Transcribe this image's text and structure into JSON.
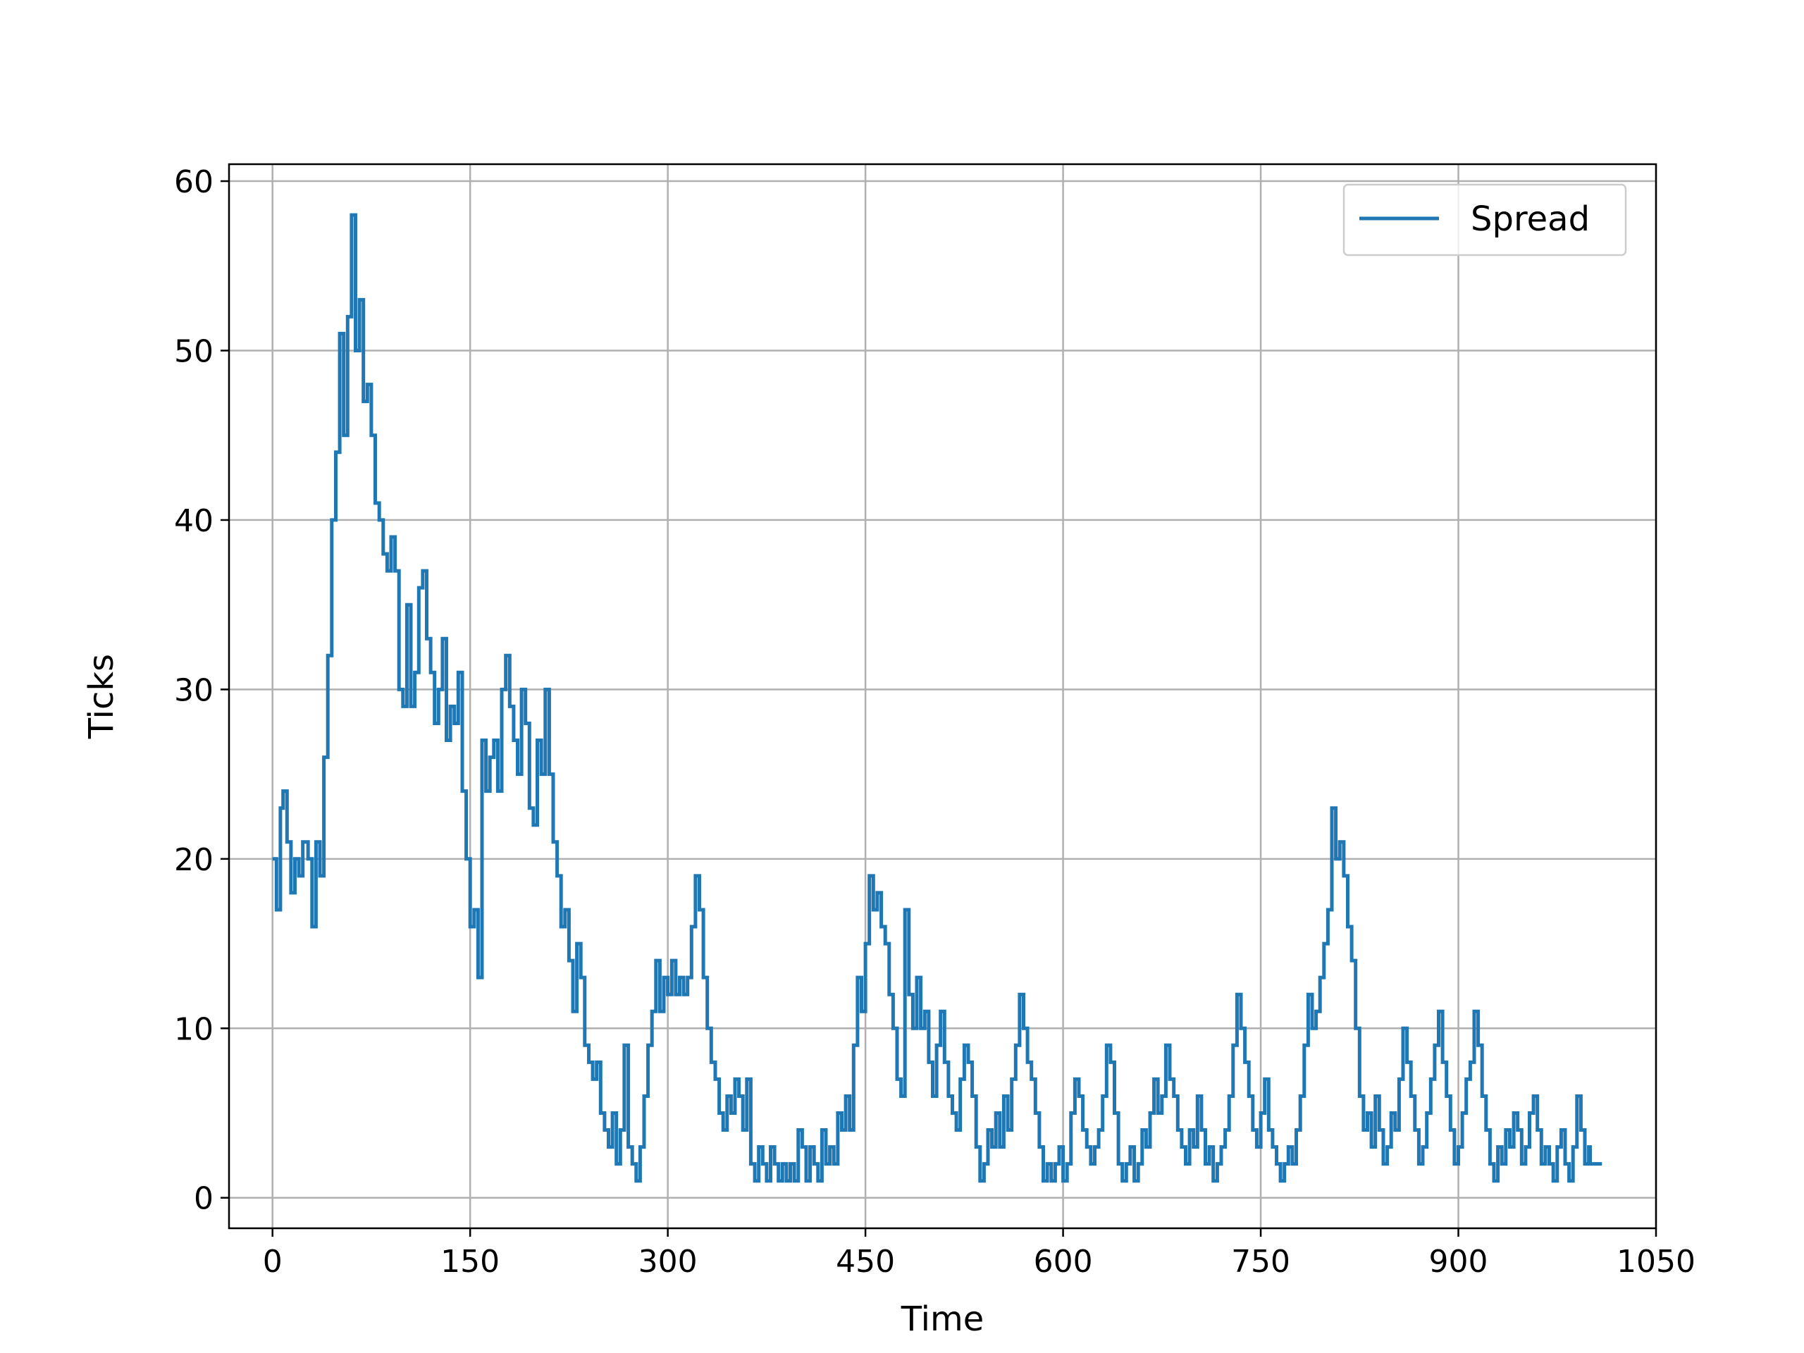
{
  "chart_data": {
    "type": "line",
    "title": "",
    "xlabel": "Time",
    "ylabel": "Ticks",
    "xlim": [
      -33,
      1050
    ],
    "ylim": [
      -1.8,
      61
    ],
    "xticks": [
      0,
      150,
      300,
      450,
      600,
      750,
      900,
      1050
    ],
    "yticks": [
      0,
      10,
      20,
      30,
      40,
      50,
      60
    ],
    "grid": true,
    "legend": {
      "position": "top-right",
      "entries": [
        "Spread"
      ]
    },
    "step": true,
    "series": [
      {
        "name": "Spread",
        "color": "#1f77b4",
        "points": [
          [
            0,
            20
          ],
          [
            3,
            17
          ],
          [
            6,
            23
          ],
          [
            8,
            24
          ],
          [
            11,
            21
          ],
          [
            14,
            18
          ],
          [
            17,
            20
          ],
          [
            20,
            19
          ],
          [
            23,
            21
          ],
          [
            27,
            20
          ],
          [
            30,
            16
          ],
          [
            33,
            21
          ],
          [
            36,
            19
          ],
          [
            39,
            26
          ],
          [
            42,
            32
          ],
          [
            45,
            40
          ],
          [
            48,
            44
          ],
          [
            51,
            51
          ],
          [
            54,
            45
          ],
          [
            57,
            52
          ],
          [
            60,
            58
          ],
          [
            63,
            50
          ],
          [
            66,
            53
          ],
          [
            69,
            47
          ],
          [
            72,
            48
          ],
          [
            75,
            45
          ],
          [
            78,
            41
          ],
          [
            81,
            40
          ],
          [
            84,
            38
          ],
          [
            87,
            37
          ],
          [
            90,
            39
          ],
          [
            93,
            37
          ],
          [
            96,
            30
          ],
          [
            99,
            29
          ],
          [
            102,
            35
          ],
          [
            105,
            29
          ],
          [
            108,
            31
          ],
          [
            111,
            36
          ],
          [
            114,
            37
          ],
          [
            117,
            33
          ],
          [
            120,
            31
          ],
          [
            123,
            28
          ],
          [
            126,
            30
          ],
          [
            129,
            33
          ],
          [
            132,
            27
          ],
          [
            135,
            29
          ],
          [
            138,
            28
          ],
          [
            141,
            31
          ],
          [
            144,
            24
          ],
          [
            147,
            20
          ],
          [
            150,
            16
          ],
          [
            153,
            17
          ],
          [
            156,
            13
          ],
          [
            159,
            27
          ],
          [
            162,
            24
          ],
          [
            165,
            26
          ],
          [
            168,
            27
          ],
          [
            171,
            24
          ],
          [
            174,
            30
          ],
          [
            177,
            32
          ],
          [
            180,
            29
          ],
          [
            183,
            27
          ],
          [
            186,
            25
          ],
          [
            189,
            30
          ],
          [
            192,
            28
          ],
          [
            195,
            23
          ],
          [
            198,
            22
          ],
          [
            201,
            27
          ],
          [
            204,
            25
          ],
          [
            207,
            30
          ],
          [
            210,
            25
          ],
          [
            213,
            21
          ],
          [
            216,
            19
          ],
          [
            219,
            16
          ],
          [
            222,
            17
          ],
          [
            225,
            14
          ],
          [
            228,
            11
          ],
          [
            231,
            15
          ],
          [
            234,
            13
          ],
          [
            237,
            9
          ],
          [
            240,
            8
          ],
          [
            243,
            7
          ],
          [
            246,
            8
          ],
          [
            249,
            5
          ],
          [
            252,
            4
          ],
          [
            255,
            3
          ],
          [
            258,
            5
          ],
          [
            261,
            2
          ],
          [
            264,
            4
          ],
          [
            267,
            9
          ],
          [
            270,
            3
          ],
          [
            273,
            2
          ],
          [
            276,
            1
          ],
          [
            279,
            3
          ],
          [
            282,
            6
          ],
          [
            285,
            9
          ],
          [
            288,
            11
          ],
          [
            291,
            14
          ],
          [
            294,
            11
          ],
          [
            297,
            13
          ],
          [
            300,
            12
          ],
          [
            303,
            14
          ],
          [
            306,
            12
          ],
          [
            309,
            13
          ],
          [
            312,
            12
          ],
          [
            315,
            13
          ],
          [
            318,
            16
          ],
          [
            321,
            19
          ],
          [
            324,
            17
          ],
          [
            327,
            13
          ],
          [
            330,
            10
          ],
          [
            333,
            8
          ],
          [
            336,
            7
          ],
          [
            339,
            5
          ],
          [
            342,
            4
          ],
          [
            345,
            6
          ],
          [
            348,
            5
          ],
          [
            351,
            7
          ],
          [
            354,
            6
          ],
          [
            357,
            4
          ],
          [
            360,
            7
          ],
          [
            363,
            2
          ],
          [
            366,
            1
          ],
          [
            369,
            3
          ],
          [
            372,
            2
          ],
          [
            375,
            1
          ],
          [
            378,
            3
          ],
          [
            381,
            2
          ],
          [
            384,
            1
          ],
          [
            387,
            2
          ],
          [
            390,
            1
          ],
          [
            393,
            2
          ],
          [
            396,
            1
          ],
          [
            399,
            4
          ],
          [
            402,
            3
          ],
          [
            405,
            1
          ],
          [
            408,
            3
          ],
          [
            411,
            2
          ],
          [
            414,
            1
          ],
          [
            417,
            4
          ],
          [
            420,
            2
          ],
          [
            423,
            3
          ],
          [
            426,
            2
          ],
          [
            429,
            5
          ],
          [
            432,
            4
          ],
          [
            435,
            6
          ],
          [
            438,
            4
          ],
          [
            441,
            9
          ],
          [
            444,
            13
          ],
          [
            447,
            11
          ],
          [
            450,
            15
          ],
          [
            453,
            19
          ],
          [
            456,
            17
          ],
          [
            459,
            18
          ],
          [
            462,
            16
          ],
          [
            465,
            15
          ],
          [
            468,
            12
          ],
          [
            471,
            10
          ],
          [
            474,
            7
          ],
          [
            477,
            6
          ],
          [
            480,
            17
          ],
          [
            483,
            12
          ],
          [
            486,
            10
          ],
          [
            489,
            13
          ],
          [
            492,
            10
          ],
          [
            495,
            11
          ],
          [
            498,
            8
          ],
          [
            501,
            6
          ],
          [
            504,
            9
          ],
          [
            507,
            11
          ],
          [
            510,
            8
          ],
          [
            513,
            6
          ],
          [
            516,
            5
          ],
          [
            519,
            4
          ],
          [
            522,
            7
          ],
          [
            525,
            9
          ],
          [
            528,
            8
          ],
          [
            531,
            6
          ],
          [
            534,
            3
          ],
          [
            537,
            1
          ],
          [
            540,
            2
          ],
          [
            543,
            4
          ],
          [
            546,
            3
          ],
          [
            549,
            5
          ],
          [
            552,
            3
          ],
          [
            555,
            6
          ],
          [
            558,
            4
          ],
          [
            561,
            7
          ],
          [
            564,
            9
          ],
          [
            567,
            12
          ],
          [
            570,
            10
          ],
          [
            573,
            8
          ],
          [
            576,
            7
          ],
          [
            579,
            5
          ],
          [
            582,
            3
          ],
          [
            585,
            1
          ],
          [
            588,
            2
          ],
          [
            591,
            1
          ],
          [
            594,
            2
          ],
          [
            597,
            3
          ],
          [
            600,
            1
          ],
          [
            603,
            2
          ],
          [
            606,
            5
          ],
          [
            609,
            7
          ],
          [
            612,
            6
          ],
          [
            615,
            4
          ],
          [
            618,
            3
          ],
          [
            621,
            2
          ],
          [
            624,
            3
          ],
          [
            627,
            4
          ],
          [
            630,
            6
          ],
          [
            633,
            9
          ],
          [
            636,
            8
          ],
          [
            639,
            5
          ],
          [
            642,
            2
          ],
          [
            645,
            1
          ],
          [
            648,
            2
          ],
          [
            651,
            3
          ],
          [
            654,
            1
          ],
          [
            657,
            2
          ],
          [
            660,
            4
          ],
          [
            663,
            3
          ],
          [
            666,
            5
          ],
          [
            669,
            7
          ],
          [
            672,
            5
          ],
          [
            675,
            6
          ],
          [
            678,
            9
          ],
          [
            681,
            7
          ],
          [
            684,
            6
          ],
          [
            687,
            4
          ],
          [
            690,
            3
          ],
          [
            693,
            2
          ],
          [
            696,
            4
          ],
          [
            699,
            3
          ],
          [
            702,
            6
          ],
          [
            705,
            4
          ],
          [
            708,
            2
          ],
          [
            711,
            3
          ],
          [
            714,
            1
          ],
          [
            717,
            2
          ],
          [
            720,
            3
          ],
          [
            723,
            4
          ],
          [
            726,
            6
          ],
          [
            729,
            9
          ],
          [
            732,
            12
          ],
          [
            735,
            10
          ],
          [
            738,
            8
          ],
          [
            741,
            6
          ],
          [
            744,
            4
          ],
          [
            747,
            3
          ],
          [
            750,
            5
          ],
          [
            753,
            7
          ],
          [
            756,
            4
          ],
          [
            759,
            3
          ],
          [
            762,
            2
          ],
          [
            765,
            1
          ],
          [
            768,
            2
          ],
          [
            771,
            3
          ],
          [
            774,
            2
          ],
          [
            777,
            4
          ],
          [
            780,
            6
          ],
          [
            783,
            9
          ],
          [
            786,
            12
          ],
          [
            789,
            10
          ],
          [
            792,
            11
          ],
          [
            795,
            13
          ],
          [
            798,
            15
          ],
          [
            801,
            17
          ],
          [
            804,
            23
          ],
          [
            807,
            20
          ],
          [
            810,
            21
          ],
          [
            813,
            19
          ],
          [
            816,
            16
          ],
          [
            819,
            14
          ],
          [
            822,
            10
          ],
          [
            825,
            6
          ],
          [
            828,
            4
          ],
          [
            831,
            5
          ],
          [
            834,
            3
          ],
          [
            837,
            6
          ],
          [
            840,
            4
          ],
          [
            843,
            2
          ],
          [
            846,
            3
          ],
          [
            849,
            5
          ],
          [
            852,
            4
          ],
          [
            855,
            7
          ],
          [
            858,
            10
          ],
          [
            861,
            8
          ],
          [
            864,
            6
          ],
          [
            867,
            4
          ],
          [
            870,
            2
          ],
          [
            873,
            3
          ],
          [
            876,
            5
          ],
          [
            879,
            7
          ],
          [
            882,
            9
          ],
          [
            885,
            11
          ],
          [
            888,
            8
          ],
          [
            891,
            6
          ],
          [
            894,
            4
          ],
          [
            897,
            2
          ],
          [
            900,
            3
          ],
          [
            903,
            5
          ],
          [
            906,
            7
          ],
          [
            909,
            8
          ],
          [
            912,
            11
          ],
          [
            915,
            9
          ],
          [
            918,
            6
          ],
          [
            921,
            4
          ],
          [
            924,
            2
          ],
          [
            927,
            1
          ],
          [
            930,
            3
          ],
          [
            933,
            2
          ],
          [
            936,
            4
          ],
          [
            939,
            3
          ],
          [
            942,
            5
          ],
          [
            945,
            4
          ],
          [
            948,
            2
          ],
          [
            951,
            3
          ],
          [
            954,
            5
          ],
          [
            957,
            6
          ],
          [
            960,
            4
          ],
          [
            963,
            2
          ],
          [
            966,
            3
          ],
          [
            969,
            2
          ],
          [
            972,
            1
          ],
          [
            975,
            3
          ],
          [
            978,
            4
          ],
          [
            981,
            2
          ],
          [
            984,
            1
          ],
          [
            987,
            3
          ],
          [
            990,
            6
          ],
          [
            993,
            4
          ],
          [
            996,
            2
          ],
          [
            999,
            3
          ],
          [
            1000,
            2
          ],
          [
            1003,
            2
          ],
          [
            1006,
            2
          ],
          [
            1009,
            2
          ]
        ]
      }
    ]
  }
}
